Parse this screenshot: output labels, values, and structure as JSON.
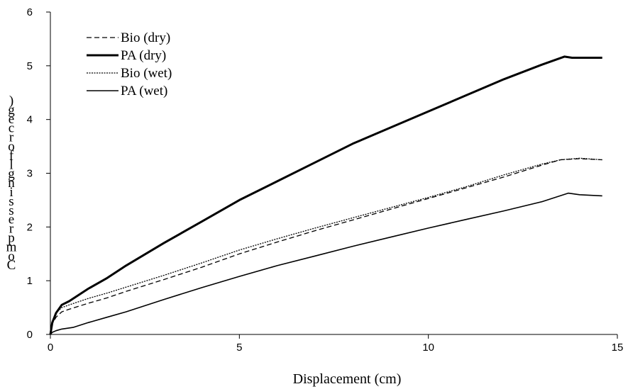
{
  "chart_data": {
    "type": "line",
    "xlabel": "Displacement (cm)",
    "ylabel": "Compressive strength (kgf/cm²)",
    "ylabel_visible_glyphs": [
      ")",
      "g",
      "e",
      "c",
      "r",
      "o",
      "f",
      "l",
      "g",
      "n",
      "i",
      "s",
      "s",
      "e",
      "r",
      "p",
      "m",
      "o",
      "C"
    ],
    "xlim": [
      0,
      15
    ],
    "ylim": [
      0,
      6
    ],
    "x_ticks": [
      0,
      5,
      10,
      15
    ],
    "y_ticks": [
      0,
      1,
      2,
      3,
      4,
      5,
      6
    ],
    "grid": false,
    "legend_position": "top-left",
    "series": [
      {
        "name": "Bio (dry)",
        "style": "dashed",
        "x": [
          0,
          0.05,
          0.15,
          0.3,
          0.5,
          1.0,
          1.5,
          2.0,
          3.0,
          4.0,
          5.0,
          6.0,
          7.0,
          8.0,
          9.0,
          10.0,
          11.0,
          12.0,
          13.0,
          13.5,
          14.0,
          14.6
        ],
        "y": [
          0,
          0.2,
          0.32,
          0.42,
          0.47,
          0.58,
          0.68,
          0.8,
          1.02,
          1.25,
          1.5,
          1.72,
          1.93,
          2.13,
          2.33,
          2.53,
          2.73,
          2.93,
          3.15,
          3.25,
          3.27,
          3.25
        ]
      },
      {
        "name": "PA (dry)",
        "style": "thick-solid",
        "x": [
          0,
          0.05,
          0.15,
          0.3,
          0.5,
          1.0,
          1.5,
          2.0,
          3.0,
          4.0,
          5.0,
          6.0,
          7.0,
          8.0,
          9.0,
          10.0,
          11.0,
          12.0,
          13.0,
          13.6,
          13.8,
          14.6
        ],
        "y": [
          0,
          0.22,
          0.4,
          0.55,
          0.62,
          0.85,
          1.05,
          1.28,
          1.7,
          2.1,
          2.5,
          2.85,
          3.2,
          3.55,
          3.85,
          4.15,
          4.45,
          4.75,
          5.02,
          5.17,
          5.15,
          5.15
        ]
      },
      {
        "name": "Bio (wet)",
        "style": "dotted",
        "x": [
          0,
          0.05,
          0.15,
          0.3,
          0.5,
          1.0,
          1.5,
          2.0,
          3.0,
          4.0,
          5.0,
          6.0,
          7.0,
          8.0,
          9.0,
          10.0,
          11.0,
          12.0,
          13.0,
          13.5,
          14.0,
          14.6
        ],
        "y": [
          0,
          0.25,
          0.4,
          0.5,
          0.55,
          0.67,
          0.77,
          0.88,
          1.1,
          1.33,
          1.57,
          1.78,
          1.98,
          2.17,
          2.36,
          2.55,
          2.75,
          2.97,
          3.17,
          3.25,
          3.28,
          3.25
        ]
      },
      {
        "name": "PA (wet)",
        "style": "thin-solid",
        "x": [
          0,
          0.05,
          0.15,
          0.3,
          0.6,
          1.0,
          1.5,
          2.0,
          3.0,
          4.0,
          5.0,
          6.0,
          7.0,
          8.0,
          9.0,
          10.0,
          11.0,
          12.0,
          13.0,
          13.7,
          14.0,
          14.6
        ],
        "y": [
          0,
          0.04,
          0.07,
          0.1,
          0.13,
          0.22,
          0.32,
          0.42,
          0.65,
          0.87,
          1.08,
          1.28,
          1.46,
          1.64,
          1.81,
          1.98,
          2.14,
          2.3,
          2.47,
          2.63,
          2.6,
          2.58
        ]
      }
    ]
  }
}
